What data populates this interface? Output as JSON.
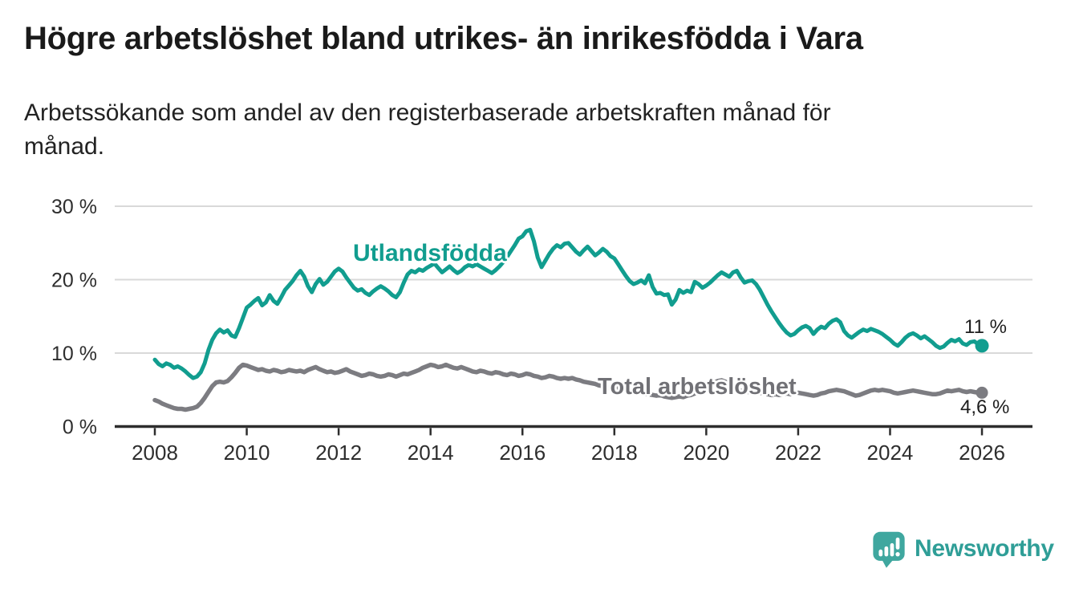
{
  "chart_data": {
    "type": "line",
    "title": "Högre arbetslöshet bland utrikes- än inrikesfödda i Vara",
    "subtitle": "Arbetssökande som andel av den registerbaserade arbetskraften månad för\nmånad.",
    "frequency": "monthly",
    "x_start": 2008.0,
    "xlim": [
      2007.15,
      2027.1
    ],
    "ylim": [
      0,
      30
    ],
    "grid": "horizontal",
    "yticks": [
      {
        "value": 0,
        "label": "0 %"
      },
      {
        "value": 10,
        "label": "10 %"
      },
      {
        "value": 20,
        "label": "20 %"
      },
      {
        "value": 30,
        "label": "30 %"
      }
    ],
    "xticks": [
      {
        "value": 2008,
        "label": "2008"
      },
      {
        "value": 2010,
        "label": "2010"
      },
      {
        "value": 2012,
        "label": "2012"
      },
      {
        "value": 2014,
        "label": "2014"
      },
      {
        "value": 2016,
        "label": "2016"
      },
      {
        "value": 2018,
        "label": "2018"
      },
      {
        "value": 2020,
        "label": "2020"
      },
      {
        "value": 2022,
        "label": "2022"
      },
      {
        "value": 2024,
        "label": "2024"
      },
      {
        "value": 2026,
        "label": "2026"
      }
    ],
    "series": [
      {
        "name": "Utlandsfödda",
        "color": "#119d8f",
        "end_label": "11 %",
        "end_value": 11.0,
        "values": [
          9.1,
          8.5,
          8.2,
          8.6,
          8.4,
          8.0,
          8.2,
          7.9,
          7.5,
          7.0,
          6.6,
          6.8,
          7.4,
          8.6,
          10.4,
          11.8,
          12.7,
          13.2,
          12.8,
          13.1,
          12.4,
          12.2,
          13.4,
          14.8,
          16.2,
          16.6,
          17.1,
          17.5,
          16.5,
          16.9,
          17.9,
          17.1,
          16.7,
          17.6,
          18.6,
          19.2,
          19.8,
          20.6,
          21.2,
          20.4,
          19.1,
          18.3,
          19.4,
          20.1,
          19.3,
          19.7,
          20.4,
          21.1,
          21.5,
          21.1,
          20.3,
          19.6,
          18.9,
          18.5,
          18.7,
          18.2,
          17.9,
          18.4,
          18.8,
          19.1,
          18.8,
          18.4,
          17.9,
          17.6,
          18.3,
          19.6,
          20.7,
          21.2,
          21.0,
          21.4,
          21.2,
          21.6,
          21.9,
          22.2,
          21.6,
          21.0,
          21.4,
          21.8,
          21.3,
          20.9,
          21.2,
          21.7,
          22.0,
          21.8,
          22.1,
          21.8,
          21.5,
          21.2,
          20.9,
          21.3,
          21.8,
          22.4,
          23.1,
          23.9,
          24.7,
          25.6,
          25.9,
          26.6,
          26.8,
          25.2,
          23.0,
          21.7,
          22.6,
          23.5,
          24.2,
          24.7,
          24.4,
          24.9,
          25.0,
          24.4,
          23.8,
          23.4,
          24.0,
          24.5,
          23.9,
          23.3,
          23.7,
          24.2,
          23.8,
          23.2,
          22.9,
          22.1,
          21.3,
          20.5,
          19.8,
          19.4,
          19.6,
          19.9,
          19.5,
          20.6,
          19.0,
          18.1,
          18.2,
          17.9,
          18.0,
          16.6,
          17.3,
          18.6,
          18.2,
          18.5,
          18.3,
          19.7,
          19.4,
          18.9,
          19.2,
          19.6,
          20.1,
          20.6,
          21.0,
          20.7,
          20.4,
          21.0,
          21.2,
          20.3,
          19.6,
          19.8,
          19.9,
          19.4,
          18.6,
          17.6,
          16.6,
          15.7,
          14.9,
          14.1,
          13.4,
          12.8,
          12.4,
          12.6,
          13.1,
          13.5,
          13.7,
          13.4,
          12.6,
          13.2,
          13.6,
          13.4,
          14.0,
          14.4,
          14.6,
          14.2,
          13.0,
          12.4,
          12.1,
          12.5,
          12.9,
          13.2,
          13.0,
          13.3,
          13.1,
          12.9,
          12.6,
          12.2,
          11.8,
          11.3,
          11.0,
          11.5,
          12.1,
          12.5,
          12.7,
          12.4,
          12.0,
          12.3,
          11.9,
          11.5,
          11.0,
          10.7,
          10.9,
          11.4,
          11.8,
          11.6,
          11.9,
          11.3,
          11.1,
          11.5,
          11.6,
          11.2,
          11.0
        ]
      },
      {
        "name": "Total arbetslöshet",
        "color": "#7c7c81",
        "end_label": "4,6 %",
        "end_value": 4.6,
        "values": [
          3.6,
          3.4,
          3.1,
          2.9,
          2.7,
          2.5,
          2.4,
          2.4,
          2.3,
          2.4,
          2.5,
          2.7,
          3.2,
          3.9,
          4.7,
          5.5,
          6.0,
          6.1,
          6.0,
          6.2,
          6.7,
          7.3,
          8.0,
          8.4,
          8.3,
          8.1,
          7.9,
          7.7,
          7.8,
          7.6,
          7.5,
          7.7,
          7.6,
          7.4,
          7.5,
          7.7,
          7.6,
          7.5,
          7.6,
          7.4,
          7.7,
          7.9,
          8.1,
          7.8,
          7.6,
          7.4,
          7.5,
          7.3,
          7.4,
          7.6,
          7.8,
          7.5,
          7.3,
          7.1,
          6.9,
          7.0,
          7.2,
          7.1,
          6.9,
          6.8,
          6.9,
          7.1,
          7.0,
          6.8,
          7.0,
          7.2,
          7.1,
          7.3,
          7.5,
          7.7,
          8.0,
          8.2,
          8.4,
          8.3,
          8.1,
          8.2,
          8.4,
          8.2,
          8.0,
          7.9,
          8.1,
          7.9,
          7.7,
          7.5,
          7.4,
          7.6,
          7.5,
          7.3,
          7.2,
          7.4,
          7.3,
          7.1,
          7.0,
          7.2,
          7.1,
          6.9,
          7.0,
          7.2,
          7.1,
          6.9,
          6.8,
          6.6,
          6.7,
          6.9,
          6.8,
          6.6,
          6.5,
          6.6,
          6.5,
          6.6,
          6.4,
          6.3,
          6.1,
          6.0,
          5.9,
          5.8,
          5.6,
          5.5,
          5.3,
          5.2,
          5.3,
          5.1,
          5.0,
          4.9,
          4.8,
          4.7,
          4.8,
          4.6,
          4.5,
          4.4,
          4.3,
          4.2,
          4.3,
          4.1,
          4.0,
          3.9,
          4.0,
          4.1,
          4.0,
          4.2,
          4.3,
          4.5,
          4.7,
          4.9,
          5.2,
          5.5,
          5.9,
          6.2,
          6.3,
          6.1,
          5.8,
          5.4,
          5.1,
          4.9,
          4.8,
          4.7,
          4.8,
          4.7,
          4.6,
          4.5,
          4.4,
          4.3,
          4.4,
          4.3,
          4.4,
          4.5,
          4.4,
          4.5,
          4.6,
          4.5,
          4.4,
          4.3,
          4.2,
          4.3,
          4.5,
          4.6,
          4.8,
          4.9,
          5.0,
          4.9,
          4.8,
          4.6,
          4.4,
          4.2,
          4.3,
          4.5,
          4.7,
          4.9,
          5.0,
          4.9,
          5.0,
          4.9,
          4.8,
          4.6,
          4.5,
          4.6,
          4.7,
          4.8,
          4.9,
          4.8,
          4.7,
          4.6,
          4.5,
          4.4,
          4.4,
          4.5,
          4.7,
          4.9,
          4.8,
          4.9,
          5.0,
          4.8,
          4.7,
          4.8,
          4.7,
          4.6,
          4.6
        ]
      }
    ],
    "colors": {
      "accent_teal": "#119d8f",
      "line_gray": "#7c7c81",
      "gridline": "#d9d9d9",
      "axis": "#2d2d2d",
      "tick_text": "#2e2e2e",
      "title_text": "#1a1a1a"
    }
  },
  "footer": {
    "brand": "Newsworthy",
    "brand_color": "#2f9e97",
    "icon_color": "#3fa79f"
  }
}
